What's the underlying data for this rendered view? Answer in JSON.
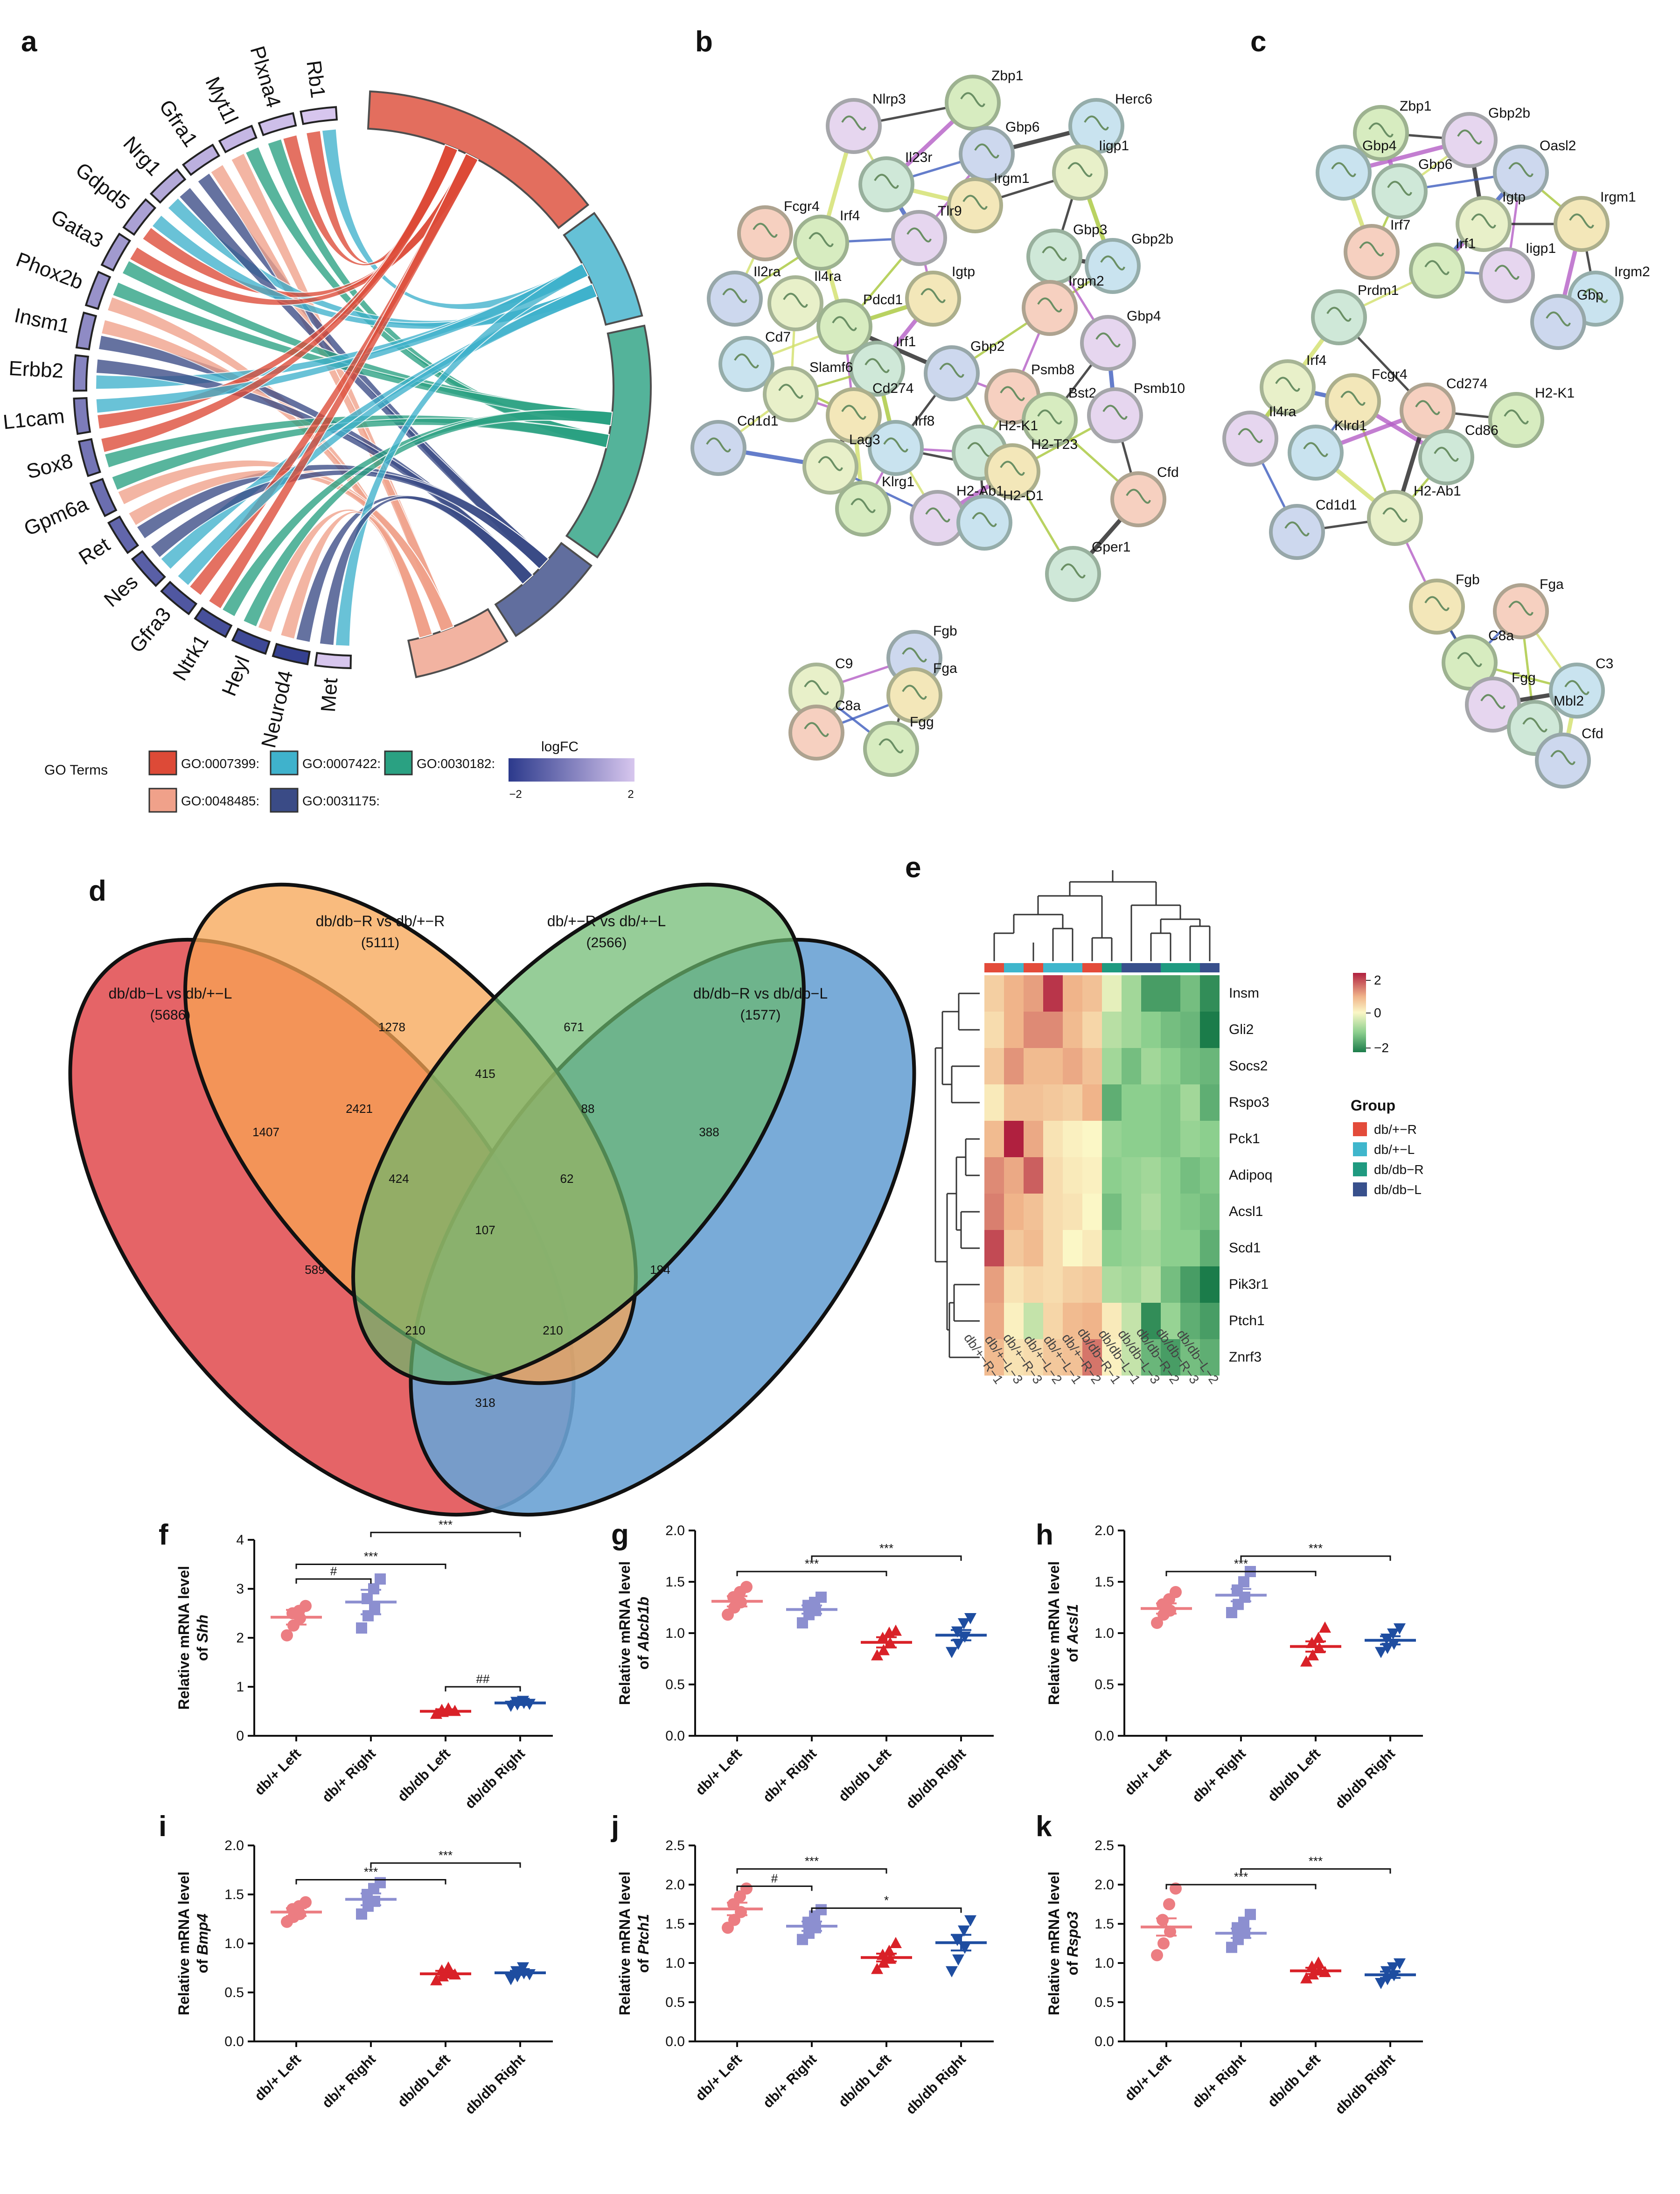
{
  "panel_letters": [
    "a",
    "b",
    "c",
    "d",
    "e",
    "f",
    "g",
    "h",
    "i",
    "j",
    "k"
  ],
  "chord": {
    "genes": [
      "Rb1",
      "Plxna4",
      "Myt1l",
      "Gfra1",
      "Nrg1",
      "Gdpd5",
      "Gata3",
      "Phox2b",
      "Insm1",
      "Erbb2",
      "L1cam",
      "Sox8",
      "Gpm6a",
      "Ret",
      "Nes",
      "Gfra3",
      "Ntrk1",
      "Heyl",
      "Neurod4",
      "Met"
    ],
    "legend_title": "GO Terms",
    "go_terms": [
      {
        "label": "GO:0007399:",
        "color": "#dd4a37"
      },
      {
        "label": "GO:0007422:",
        "color": "#3fb2cc"
      },
      {
        "label": "GO:0030182:",
        "color": "#2aa182"
      },
      {
        "label": "GO:0048485:",
        "color": "#f0a18a"
      },
      {
        "label": "GO:0031175:",
        "color": "#3a4b86"
      }
    ],
    "logfc_title": "logFC",
    "logfc_min": "−2",
    "logfc_max": "2"
  },
  "network_b": {
    "nodes": [
      "Zbp1",
      "Nlrp3",
      "Herc6",
      "Il23r",
      "Gbp6",
      "Iigp1",
      "Irgm1",
      "Fcgr4",
      "Irf4",
      "Tlr9",
      "Gbp2b",
      "Gbp3",
      "Il2ra",
      "Il4ra",
      "Igtp",
      "Irgm2",
      "Pdcd1",
      "Gbp4",
      "Cd7",
      "Irf1",
      "Gbp2",
      "Slamf6",
      "Cd274",
      "Psmb8",
      "Bst2",
      "Psmb10",
      "Irf8",
      "H2-K1",
      "Cd1d1",
      "Lag3",
      "H2-T23",
      "Cfd",
      "Klrg1",
      "H2-Ab1",
      "H2-D1",
      "Gper1",
      "Fgb",
      "C9",
      "Fga",
      "C8a",
      "Fgg"
    ]
  },
  "network_c": {
    "nodes": [
      "Zbp1",
      "Gbp2b",
      "Gbp4",
      "Gbp6",
      "Oasl2",
      "Igtp",
      "Irgm1",
      "Irf7",
      "Irf1",
      "Iigp1",
      "Irgm2",
      "Prdm1",
      "Gbp",
      "Irf4",
      "Fcgr4",
      "Cd274",
      "H2-K1",
      "Il4ra",
      "Klrd1",
      "Cd86",
      "Cd1d1",
      "H2-Ab1",
      "Fgb",
      "Fga",
      "C8a",
      "Fgg",
      "C3",
      "Mbl2",
      "Cfd"
    ]
  },
  "venn": {
    "sets": [
      {
        "name": "db/db−L vs db/+−L",
        "count": "(5686)",
        "color": "#e25357"
      },
      {
        "name": "db/db−R vs db/+−R",
        "count": "(5111)",
        "color": "#f7a453"
      },
      {
        "name": "db/+−R vs db/+−L",
        "count": "(2566)",
        "color": "#6ab86c"
      },
      {
        "name": "db/db−R vs db/db−L",
        "count": "(1577)",
        "color": "#6aa2d4"
      }
    ],
    "regions": [
      "1407",
      "1278",
      "671",
      "388",
      "2421",
      "415",
      "88",
      "424",
      "62",
      "107",
      "589",
      "194",
      "210",
      "210",
      "318"
    ]
  },
  "heatmap": {
    "genes": [
      "Insm",
      "Gli2",
      "Socs2",
      "Rspo3",
      "Pck1",
      "Adipoq",
      "Acsl1",
      "Scd1",
      "Pik3r1",
      "Ptch1",
      "Znrf3"
    ],
    "samples": [
      "db/+−R−1",
      "db/+−L−3",
      "db/+−R−3",
      "db/+−L−2",
      "db/+−L−1",
      "db/+−R−2",
      "db/db−R−1",
      "db/db−L−1",
      "db/db−L−3",
      "db/db−R−2",
      "db/db−R−3",
      "db/db−L−2"
    ],
    "sample_groups": [
      0,
      1,
      0,
      1,
      1,
      0,
      2,
      3,
      3,
      2,
      2,
      3
    ],
    "values": [
      [
        0.6,
        1.0,
        1.2,
        2.2,
        1.0,
        0.8,
        -0.2,
        -0.8,
        -1.6,
        -1.6,
        -1.2,
        -1.8
      ],
      [
        0.4,
        1.0,
        1.4,
        1.4,
        0.9,
        0.5,
        -0.6,
        -0.8,
        -1.0,
        -1.2,
        -1.3,
        -2.2
      ],
      [
        0.7,
        1.3,
        0.9,
        0.9,
        1.1,
        0.8,
        -0.8,
        -1.2,
        -0.8,
        -1.0,
        -1.2,
        -1.3
      ],
      [
        0.2,
        0.8,
        0.8,
        0.7,
        0.6,
        1.0,
        -1.4,
        -1.0,
        -1.0,
        -1.1,
        -0.8,
        -1.4
      ],
      [
        0.9,
        2.4,
        1.1,
        0.3,
        0.1,
        0.0,
        -0.9,
        -1.0,
        -1.0,
        -1.1,
        -0.9,
        -1.0
      ],
      [
        1.4,
        1.1,
        1.8,
        0.4,
        0.2,
        0.1,
        -1.0,
        -0.9,
        -0.8,
        -1.0,
        -1.2,
        -1.1
      ],
      [
        1.5,
        1.0,
        0.8,
        0.4,
        0.3,
        0.0,
        -1.2,
        -0.9,
        -0.7,
        -1.0,
        -1.1,
        -1.2
      ],
      [
        2.0,
        0.7,
        0.9,
        0.4,
        0.0,
        0.2,
        -1.0,
        -0.9,
        -0.8,
        -1.0,
        -1.0,
        -1.4
      ],
      [
        1.2,
        0.3,
        0.5,
        0.4,
        0.6,
        0.7,
        -0.7,
        -0.8,
        -0.6,
        -1.2,
        -1.6,
        -2.0
      ],
      [
        1.1,
        0.1,
        -0.5,
        0.5,
        0.9,
        1.0,
        0.2,
        -0.5,
        -1.8,
        -0.9,
        -1.4,
        -1.6
      ],
      [
        0.9,
        0.3,
        0.4,
        0.7,
        0.8,
        1.6,
        0.1,
        -0.5,
        -1.3,
        -1.6,
        -1.2,
        -1.4
      ]
    ],
    "scale_labels": [
      "2",
      "0",
      "−2"
    ],
    "legend_title": "Group",
    "groups": [
      {
        "name": "db/+−R",
        "color": "#e34b3a"
      },
      {
        "name": "db/+−L",
        "color": "#3fb6cc"
      },
      {
        "name": "db/db−R",
        "color": "#1f9a80"
      },
      {
        "name": "db/db−L",
        "color": "#38508c"
      }
    ]
  },
  "chart_data": [
    {
      "panel": "f",
      "type": "scatter",
      "ylabel": "Relative mRNA level",
      "gene": "Shh",
      "ylim": [
        0,
        4
      ],
      "yticks": [
        "0",
        "1",
        "2",
        "3",
        "4"
      ],
      "categories": [
        "db/+ Left",
        "db/+ Right",
        "db/db Left",
        "db/db Right"
      ],
      "means": [
        2.42,
        2.73,
        0.5,
        0.67
      ],
      "sem": [
        0.15,
        0.25,
        0.04,
        0.04
      ],
      "points": [
        [
          2.05,
          2.25,
          2.4,
          2.5,
          2.55,
          2.65
        ],
        [
          2.2,
          2.45,
          2.6,
          2.8,
          3.0,
          3.2
        ],
        [
          0.44,
          0.48,
          0.5,
          0.52,
          0.55,
          0.5
        ],
        [
          0.62,
          0.65,
          0.68,
          0.7,
          0.72,
          0.66
        ]
      ],
      "markers": [
        "circle",
        "square",
        "triangle-up",
        "triangle-down"
      ],
      "colors": [
        "#ec7d82",
        "#8c8fd0",
        "#d92128",
        "#1e4da0"
      ],
      "brackets": [
        {
          "from": 0,
          "to": 1,
          "label": "#",
          "y": 3.2
        },
        {
          "from": 0,
          "to": 2,
          "label": "***",
          "y": 3.5
        },
        {
          "from": 1,
          "to": 3,
          "label": "***",
          "y": 4.15
        },
        {
          "from": 2,
          "to": 3,
          "label": "##",
          "y": 1.0
        }
      ]
    },
    {
      "panel": "g",
      "type": "scatter",
      "ylabel": "Relative mRNA level",
      "gene": "Abcb1b",
      "ylim": [
        0,
        2
      ],
      "yticks": [
        "0.0",
        "0.5",
        "1.0",
        "1.5",
        "2.0"
      ],
      "categories": [
        "db/+ Left",
        "db/+ Right",
        "db/db Left",
        "db/db Right"
      ],
      "means": [
        1.31,
        1.23,
        0.91,
        0.98
      ],
      "sem": [
        0.05,
        0.04,
        0.05,
        0.05
      ],
      "points": [
        [
          1.18,
          1.25,
          1.3,
          1.35,
          1.4,
          1.45
        ],
        [
          1.1,
          1.18,
          1.22,
          1.27,
          1.3,
          1.35
        ],
        [
          0.78,
          0.83,
          0.9,
          0.95,
          1.0,
          1.02
        ],
        [
          0.82,
          0.9,
          0.97,
          1.02,
          1.1,
          1.15
        ]
      ],
      "markers": [
        "circle",
        "square",
        "triangle-up",
        "triangle-down"
      ],
      "colors": [
        "#ec7d82",
        "#8c8fd0",
        "#d92128",
        "#1e4da0"
      ],
      "brackets": [
        {
          "from": 0,
          "to": 2,
          "label": "***",
          "y": 1.6
        },
        {
          "from": 1,
          "to": 3,
          "label": "***",
          "y": 1.75
        }
      ]
    },
    {
      "panel": "h",
      "type": "scatter",
      "ylabel": "Relative mRNA level",
      "gene": "Acsl1",
      "ylim": [
        0,
        2
      ],
      "yticks": [
        "0.0",
        "0.5",
        "1.0",
        "1.5",
        "2.0"
      ],
      "categories": [
        "db/+ Left",
        "db/+ Right",
        "db/db Left",
        "db/db Right"
      ],
      "means": [
        1.24,
        1.37,
        0.87,
        0.93
      ],
      "sem": [
        0.05,
        0.06,
        0.05,
        0.04
      ],
      "points": [
        [
          1.1,
          1.18,
          1.22,
          1.28,
          1.33,
          1.4
        ],
        [
          1.2,
          1.28,
          1.35,
          1.42,
          1.5,
          1.6
        ],
        [
          0.72,
          0.78,
          0.85,
          0.9,
          0.95,
          1.05
        ],
        [
          0.82,
          0.86,
          0.9,
          0.95,
          1.0,
          1.05
        ]
      ],
      "markers": [
        "circle",
        "square",
        "triangle-up",
        "triangle-down"
      ],
      "colors": [
        "#ec7d82",
        "#8c8fd0",
        "#d92128",
        "#1e4da0"
      ],
      "brackets": [
        {
          "from": 0,
          "to": 2,
          "label": "***",
          "y": 1.6
        },
        {
          "from": 1,
          "to": 3,
          "label": "***",
          "y": 1.75
        }
      ]
    },
    {
      "panel": "i",
      "type": "scatter",
      "ylabel": "Relative mRNA level",
      "gene": "Bmp4",
      "ylim": [
        0,
        2
      ],
      "yticks": [
        "0.0",
        "0.5",
        "1.0",
        "1.5",
        "2.0"
      ],
      "categories": [
        "db/+ Left",
        "db/+ Right",
        "db/db Left",
        "db/db Right"
      ],
      "means": [
        1.32,
        1.45,
        0.69,
        0.7
      ],
      "sem": [
        0.04,
        0.06,
        0.03,
        0.02
      ],
      "points": [
        [
          1.22,
          1.27,
          1.3,
          1.35,
          1.38,
          1.42
        ],
        [
          1.3,
          1.38,
          1.43,
          1.5,
          1.56,
          1.62
        ],
        [
          0.62,
          0.66,
          0.69,
          0.72,
          0.75,
          0.68
        ],
        [
          0.64,
          0.67,
          0.7,
          0.72,
          0.76,
          0.69
        ]
      ],
      "markers": [
        "circle",
        "square",
        "triangle-up",
        "triangle-down"
      ],
      "colors": [
        "#ec7d82",
        "#8c8fd0",
        "#d92128",
        "#1e4da0"
      ],
      "brackets": [
        {
          "from": 0,
          "to": 2,
          "label": "***",
          "y": 1.65
        },
        {
          "from": 1,
          "to": 3,
          "label": "***",
          "y": 1.82
        }
      ]
    },
    {
      "panel": "j",
      "type": "scatter",
      "ylabel": "Relative mRNA level",
      "gene": "Ptch1",
      "ylim": [
        0,
        2.5
      ],
      "yticks": [
        "0.0",
        "0.5",
        "1.0",
        "1.5",
        "2.0",
        "2.5"
      ],
      "categories": [
        "db/+ Left",
        "db/+ Right",
        "db/db Left",
        "db/db Right"
      ],
      "means": [
        1.69,
        1.47,
        1.07,
        1.26
      ],
      "sem": [
        0.08,
        0.06,
        0.05,
        0.1
      ],
      "points": [
        [
          1.45,
          1.55,
          1.65,
          1.75,
          1.85,
          1.95
        ],
        [
          1.3,
          1.38,
          1.45,
          1.52,
          1.6,
          1.68
        ],
        [
          0.92,
          1.0,
          1.05,
          1.1,
          1.15,
          1.25
        ],
        [
          0.9,
          1.05,
          1.2,
          1.3,
          1.42,
          1.55
        ]
      ],
      "markers": [
        "circle",
        "square",
        "triangle-up",
        "triangle-down"
      ],
      "colors": [
        "#ec7d82",
        "#8c8fd0",
        "#d92128",
        "#1e4da0"
      ],
      "brackets": [
        {
          "from": 0,
          "to": 1,
          "label": "#",
          "y": 1.98
        },
        {
          "from": 0,
          "to": 2,
          "label": "***",
          "y": 2.2
        },
        {
          "from": 1,
          "to": 3,
          "label": "*",
          "y": 1.7
        }
      ]
    },
    {
      "panel": "k",
      "type": "scatter",
      "ylabel": "Relative mRNA level",
      "gene": "Rspo3",
      "ylim": [
        0,
        2.5
      ],
      "yticks": [
        "0.0",
        "0.5",
        "1.0",
        "1.5",
        "2.0",
        "2.5"
      ],
      "categories": [
        "db/+ Left",
        "db/+ Right",
        "db/db Left",
        "db/db Right"
      ],
      "means": [
        1.46,
        1.38,
        0.9,
        0.85
      ],
      "sem": [
        0.11,
        0.06,
        0.04,
        0.04
      ],
      "points": [
        [
          1.1,
          1.25,
          1.4,
          1.55,
          1.75,
          1.95
        ],
        [
          1.2,
          1.3,
          1.38,
          1.45,
          1.52,
          1.62
        ],
        [
          0.8,
          0.85,
          0.9,
          0.95,
          1.0,
          0.88
        ],
        [
          0.75,
          0.8,
          0.85,
          0.9,
          0.95,
          1.0
        ]
      ],
      "markers": [
        "circle",
        "square",
        "triangle-up",
        "triangle-down"
      ],
      "colors": [
        "#ec7d82",
        "#8c8fd0",
        "#d92128",
        "#1e4da0"
      ],
      "brackets": [
        {
          "from": 0,
          "to": 2,
          "label": "***",
          "y": 2.0
        },
        {
          "from": 1,
          "to": 3,
          "label": "***",
          "y": 2.2
        }
      ]
    }
  ]
}
